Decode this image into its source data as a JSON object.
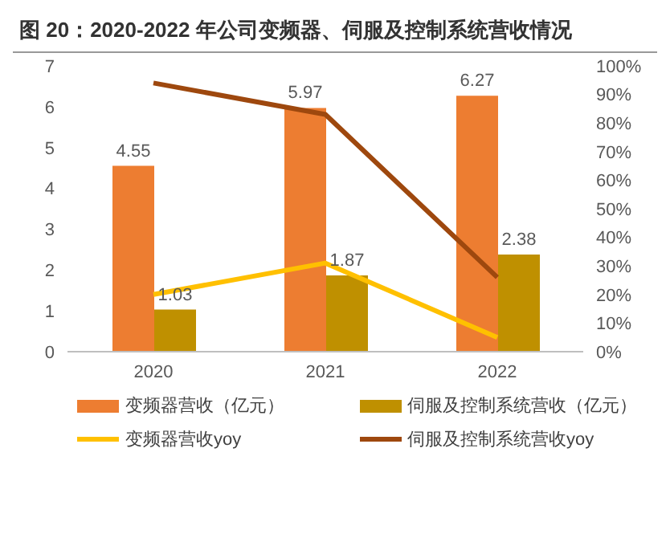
{
  "chart_data": {
    "type": "bar",
    "title": "图 20：2020-2022 年公司变频器、伺服及控制系统营收情况",
    "categories": [
      "2020",
      "2021",
      "2022"
    ],
    "series": [
      {
        "name": "变频器营收（亿元）",
        "color": "#ed7d31",
        "values": [
          4.55,
          5.97,
          6.27
        ],
        "value_labels": [
          "4.55",
          "5.97",
          "6.27"
        ]
      },
      {
        "name": "伺服及控制系统营收（亿元）",
        "color": "#bf9000",
        "values": [
          1.03,
          1.87,
          2.38
        ],
        "value_labels": [
          "1.03",
          "1.87",
          "2.38"
        ]
      },
      {
        "name": "变频器营收yoy",
        "type": "line",
        "axis": "y2",
        "color": "#ffc000",
        "values": [
          20,
          31,
          5
        ]
      },
      {
        "name": "伺服及控制系统营收yoy",
        "type": "line",
        "axis": "y2",
        "color": "#9e480e",
        "values": [
          94,
          83,
          26
        ]
      }
    ],
    "ylim": [
      0,
      7
    ],
    "yticks": [
      0,
      1,
      2,
      3,
      4,
      5,
      6,
      7
    ],
    "y2lim": [
      0,
      100
    ],
    "y2ticks": [
      {
        "value": 0,
        "label": "0%"
      },
      {
        "value": 10,
        "label": "10%"
      },
      {
        "value": 20,
        "label": "20%"
      },
      {
        "value": 30,
        "label": "30%"
      },
      {
        "value": 40,
        "label": "40%"
      },
      {
        "value": 50,
        "label": "50%"
      },
      {
        "value": 60,
        "label": "60%"
      },
      {
        "value": 70,
        "label": "70%"
      },
      {
        "value": 80,
        "label": "80%"
      },
      {
        "value": 90,
        "label": "90%"
      },
      {
        "value": 100,
        "label": "100%"
      }
    ],
    "grid": false,
    "legend": "bottom",
    "marker": "none"
  }
}
